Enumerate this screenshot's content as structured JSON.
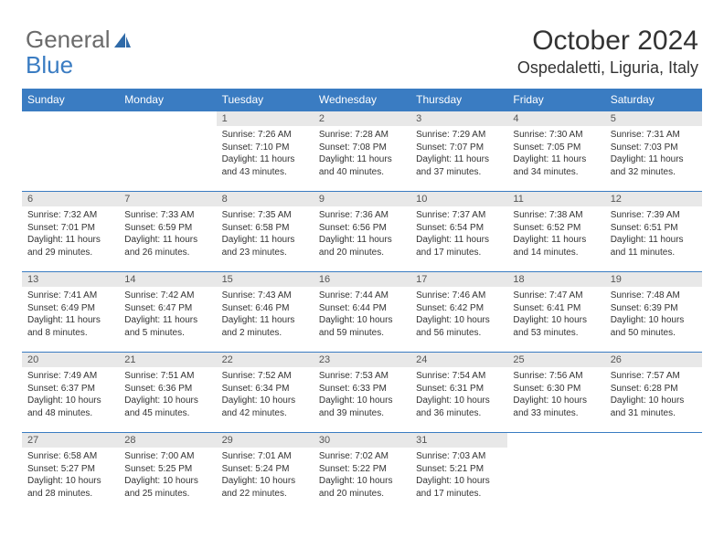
{
  "brand": {
    "part1": "General",
    "part2": "Blue"
  },
  "title": "October 2024",
  "location": "Ospedaletti, Liguria, Italy",
  "colors": {
    "header_bg": "#3a7cc2",
    "header_text": "#ffffff",
    "daynum_bg": "#e8e8e8",
    "rule": "#3a7cc2",
    "brand_gray": "#6b6b6b",
    "brand_blue": "#3a7cc2"
  },
  "typography": {
    "title_fontsize": 30,
    "location_fontsize": 18,
    "dayheader_fontsize": 12,
    "daynum_fontsize": 11,
    "body_fontsize": 10
  },
  "day_headers": [
    "Sunday",
    "Monday",
    "Tuesday",
    "Wednesday",
    "Thursday",
    "Friday",
    "Saturday"
  ],
  "weeks": [
    [
      {
        "n": "",
        "lines": [
          "",
          "",
          "",
          ""
        ]
      },
      {
        "n": "",
        "lines": [
          "",
          "",
          "",
          ""
        ]
      },
      {
        "n": "1",
        "lines": [
          "Sunrise: 7:26 AM",
          "Sunset: 7:10 PM",
          "Daylight: 11 hours",
          "and 43 minutes."
        ]
      },
      {
        "n": "2",
        "lines": [
          "Sunrise: 7:28 AM",
          "Sunset: 7:08 PM",
          "Daylight: 11 hours",
          "and 40 minutes."
        ]
      },
      {
        "n": "3",
        "lines": [
          "Sunrise: 7:29 AM",
          "Sunset: 7:07 PM",
          "Daylight: 11 hours",
          "and 37 minutes."
        ]
      },
      {
        "n": "4",
        "lines": [
          "Sunrise: 7:30 AM",
          "Sunset: 7:05 PM",
          "Daylight: 11 hours",
          "and 34 minutes."
        ]
      },
      {
        "n": "5",
        "lines": [
          "Sunrise: 7:31 AM",
          "Sunset: 7:03 PM",
          "Daylight: 11 hours",
          "and 32 minutes."
        ]
      }
    ],
    [
      {
        "n": "6",
        "lines": [
          "Sunrise: 7:32 AM",
          "Sunset: 7:01 PM",
          "Daylight: 11 hours",
          "and 29 minutes."
        ]
      },
      {
        "n": "7",
        "lines": [
          "Sunrise: 7:33 AM",
          "Sunset: 6:59 PM",
          "Daylight: 11 hours",
          "and 26 minutes."
        ]
      },
      {
        "n": "8",
        "lines": [
          "Sunrise: 7:35 AM",
          "Sunset: 6:58 PM",
          "Daylight: 11 hours",
          "and 23 minutes."
        ]
      },
      {
        "n": "9",
        "lines": [
          "Sunrise: 7:36 AM",
          "Sunset: 6:56 PM",
          "Daylight: 11 hours",
          "and 20 minutes."
        ]
      },
      {
        "n": "10",
        "lines": [
          "Sunrise: 7:37 AM",
          "Sunset: 6:54 PM",
          "Daylight: 11 hours",
          "and 17 minutes."
        ]
      },
      {
        "n": "11",
        "lines": [
          "Sunrise: 7:38 AM",
          "Sunset: 6:52 PM",
          "Daylight: 11 hours",
          "and 14 minutes."
        ]
      },
      {
        "n": "12",
        "lines": [
          "Sunrise: 7:39 AM",
          "Sunset: 6:51 PM",
          "Daylight: 11 hours",
          "and 11 minutes."
        ]
      }
    ],
    [
      {
        "n": "13",
        "lines": [
          "Sunrise: 7:41 AM",
          "Sunset: 6:49 PM",
          "Daylight: 11 hours",
          "and 8 minutes."
        ]
      },
      {
        "n": "14",
        "lines": [
          "Sunrise: 7:42 AM",
          "Sunset: 6:47 PM",
          "Daylight: 11 hours",
          "and 5 minutes."
        ]
      },
      {
        "n": "15",
        "lines": [
          "Sunrise: 7:43 AM",
          "Sunset: 6:46 PM",
          "Daylight: 11 hours",
          "and 2 minutes."
        ]
      },
      {
        "n": "16",
        "lines": [
          "Sunrise: 7:44 AM",
          "Sunset: 6:44 PM",
          "Daylight: 10 hours",
          "and 59 minutes."
        ]
      },
      {
        "n": "17",
        "lines": [
          "Sunrise: 7:46 AM",
          "Sunset: 6:42 PM",
          "Daylight: 10 hours",
          "and 56 minutes."
        ]
      },
      {
        "n": "18",
        "lines": [
          "Sunrise: 7:47 AM",
          "Sunset: 6:41 PM",
          "Daylight: 10 hours",
          "and 53 minutes."
        ]
      },
      {
        "n": "19",
        "lines": [
          "Sunrise: 7:48 AM",
          "Sunset: 6:39 PM",
          "Daylight: 10 hours",
          "and 50 minutes."
        ]
      }
    ],
    [
      {
        "n": "20",
        "lines": [
          "Sunrise: 7:49 AM",
          "Sunset: 6:37 PM",
          "Daylight: 10 hours",
          "and 48 minutes."
        ]
      },
      {
        "n": "21",
        "lines": [
          "Sunrise: 7:51 AM",
          "Sunset: 6:36 PM",
          "Daylight: 10 hours",
          "and 45 minutes."
        ]
      },
      {
        "n": "22",
        "lines": [
          "Sunrise: 7:52 AM",
          "Sunset: 6:34 PM",
          "Daylight: 10 hours",
          "and 42 minutes."
        ]
      },
      {
        "n": "23",
        "lines": [
          "Sunrise: 7:53 AM",
          "Sunset: 6:33 PM",
          "Daylight: 10 hours",
          "and 39 minutes."
        ]
      },
      {
        "n": "24",
        "lines": [
          "Sunrise: 7:54 AM",
          "Sunset: 6:31 PM",
          "Daylight: 10 hours",
          "and 36 minutes."
        ]
      },
      {
        "n": "25",
        "lines": [
          "Sunrise: 7:56 AM",
          "Sunset: 6:30 PM",
          "Daylight: 10 hours",
          "and 33 minutes."
        ]
      },
      {
        "n": "26",
        "lines": [
          "Sunrise: 7:57 AM",
          "Sunset: 6:28 PM",
          "Daylight: 10 hours",
          "and 31 minutes."
        ]
      }
    ],
    [
      {
        "n": "27",
        "lines": [
          "Sunrise: 6:58 AM",
          "Sunset: 5:27 PM",
          "Daylight: 10 hours",
          "and 28 minutes."
        ]
      },
      {
        "n": "28",
        "lines": [
          "Sunrise: 7:00 AM",
          "Sunset: 5:25 PM",
          "Daylight: 10 hours",
          "and 25 minutes."
        ]
      },
      {
        "n": "29",
        "lines": [
          "Sunrise: 7:01 AM",
          "Sunset: 5:24 PM",
          "Daylight: 10 hours",
          "and 22 minutes."
        ]
      },
      {
        "n": "30",
        "lines": [
          "Sunrise: 7:02 AM",
          "Sunset: 5:22 PM",
          "Daylight: 10 hours",
          "and 20 minutes."
        ]
      },
      {
        "n": "31",
        "lines": [
          "Sunrise: 7:03 AM",
          "Sunset: 5:21 PM",
          "Daylight: 10 hours",
          "and 17 minutes."
        ]
      },
      {
        "n": "",
        "lines": [
          "",
          "",
          "",
          ""
        ]
      },
      {
        "n": "",
        "lines": [
          "",
          "",
          "",
          ""
        ]
      }
    ]
  ]
}
